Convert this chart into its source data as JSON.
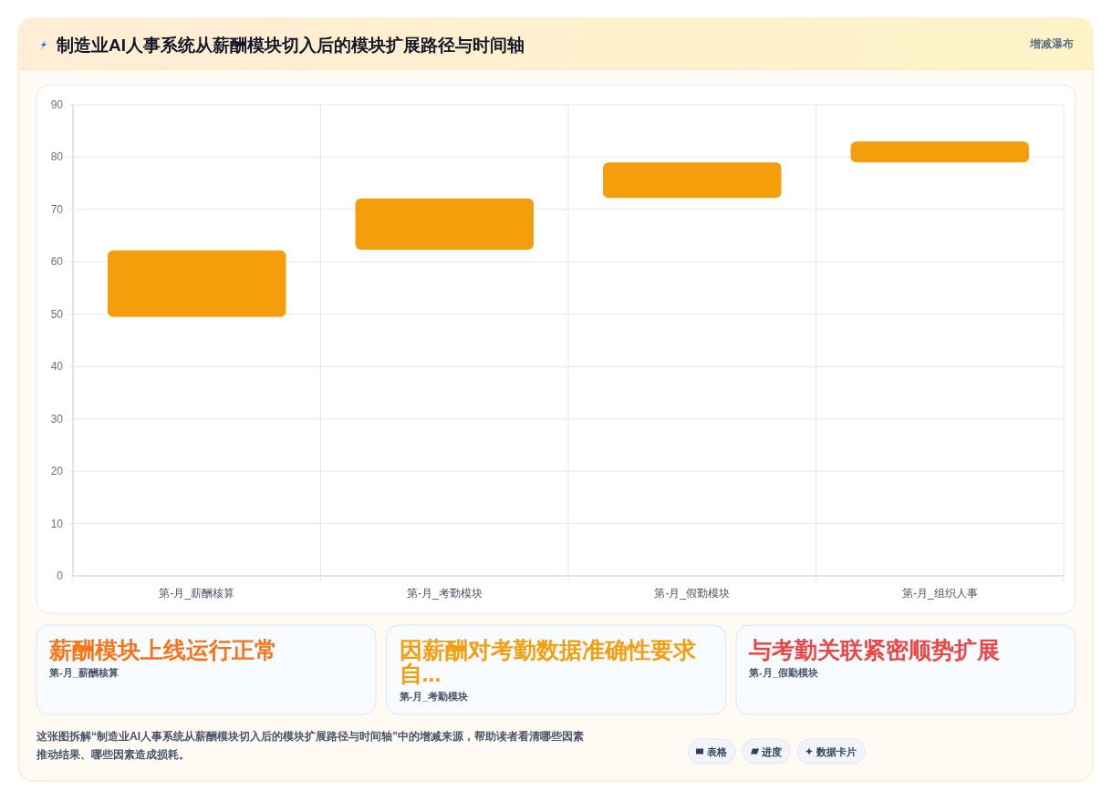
{
  "chart_data": {
    "type": "bar",
    "title": "制造业AI人事系统从薪酬模块切入后的模块扩展路径与时间轴",
    "subtitle": "增减瀑布",
    "categories": [
      "第-月_薪酬核算",
      "第-月_考勤模块",
      "第-月_假勤模块",
      "第-月_组织人事"
    ],
    "values": [
      12.7,
      9.8,
      6.8,
      4
    ],
    "base": [
      49.5,
      62.3,
      72.2,
      79
    ],
    "color": "#f59e0b",
    "ylim": [
      0,
      90
    ],
    "yticks": [
      0,
      10,
      20,
      30,
      40,
      50,
      60,
      70,
      80,
      90
    ],
    "grid": true,
    "annotations": [
      "薪酬模块上线运行正常",
      "第-月_薪酬核算",
      "因薪酬对考勤数据准确性要求自...",
      "第-月_考勤模块",
      "与考勤关联紧密顺势扩展",
      "第-月_假勤模块",
      "这张图拆解“制造业AI人事系统从薪酬模块切入后的模块扩展路径与时间轴”中的增减来源，帮助读者看清哪些因素推动结果、哪些因素造成损耗。",
      "表格",
      "进度",
      "数据卡片"
    ]
  }
}
